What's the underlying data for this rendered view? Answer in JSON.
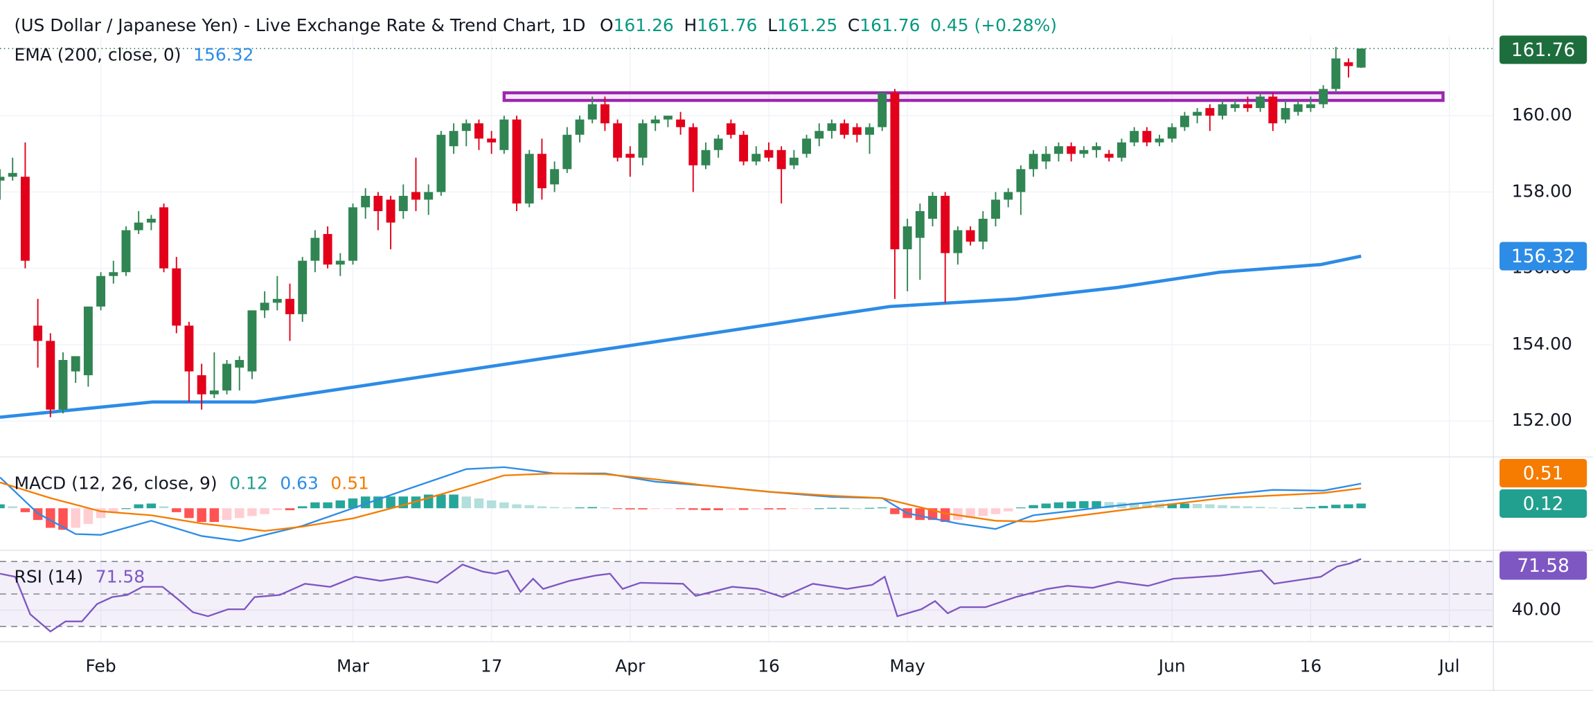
{
  "header": {
    "title": "(US Dollar / Japanese Yen) - Live Exchange Rate & Trend Chart, 1D",
    "readout": [
      {
        "key": "O",
        "value": "161.26"
      },
      {
        "key": "H",
        "value": "161.76"
      },
      {
        "key": "L",
        "value": "161.25"
      },
      {
        "key": "C",
        "value": "161.76"
      }
    ],
    "change": "0.45 (+0.28%)"
  },
  "xlim": [
    0,
    118.5
  ],
  "xticks": [
    {
      "value": 8,
      "label": "Feb"
    },
    {
      "value": 28,
      "label": "Mar"
    },
    {
      "value": 39,
      "label": "17"
    },
    {
      "value": 50,
      "label": "Apr"
    },
    {
      "value": 61,
      "label": "16"
    },
    {
      "value": 72,
      "label": "May"
    },
    {
      "value": 93,
      "label": "Jun"
    },
    {
      "value": 104,
      "label": "16"
    },
    {
      "value": 115,
      "label": "Jul"
    }
  ],
  "chart_data": [
    {
      "type": "candlestick",
      "up_color": "#308552",
      "down_color": "#e2001a",
      "grid": true,
      "ylim": [
        151.06,
        162.1
      ],
      "yticks": [
        {
          "value": 152,
          "label": "152.00"
        },
        {
          "value": 154,
          "label": "154.00"
        },
        {
          "value": 156,
          "label": "156.00"
        },
        {
          "value": 158,
          "label": "158.00"
        },
        {
          "value": 160,
          "label": "160.00"
        }
      ],
      "ohlc": [
        [
          158.3,
          158.6,
          157.8,
          158.4
        ],
        [
          158.4,
          158.9,
          158.3,
          158.5
        ],
        [
          158.4,
          159.3,
          156.0,
          156.2
        ],
        [
          154.5,
          155.2,
          153.4,
          154.1
        ],
        [
          154.1,
          154.3,
          152.1,
          152.3
        ],
        [
          152.3,
          153.8,
          152.2,
          153.6
        ],
        [
          153.3,
          153.7,
          153.0,
          153.7
        ],
        [
          153.2,
          155.0,
          152.9,
          155.0
        ],
        [
          155.0,
          155.9,
          154.9,
          155.8
        ],
        [
          155.8,
          156.2,
          155.6,
          155.9
        ],
        [
          155.9,
          157.1,
          155.8,
          157.0
        ],
        [
          157.0,
          157.5,
          156.9,
          157.2
        ],
        [
          157.2,
          157.4,
          157.0,
          157.3
        ],
        [
          157.6,
          157.7,
          155.9,
          156.0
        ],
        [
          156.0,
          156.3,
          154.3,
          154.5
        ],
        [
          154.5,
          154.6,
          152.5,
          153.3
        ],
        [
          153.2,
          153.5,
          152.3,
          152.7
        ],
        [
          152.7,
          153.8,
          152.6,
          152.8
        ],
        [
          152.8,
          153.6,
          152.7,
          153.5
        ],
        [
          153.4,
          153.7,
          152.8,
          153.6
        ],
        [
          153.3,
          154.9,
          153.1,
          154.9
        ],
        [
          154.9,
          155.4,
          154.7,
          155.1
        ],
        [
          155.1,
          155.8,
          154.9,
          155.2
        ],
        [
          155.2,
          155.6,
          154.1,
          154.8
        ],
        [
          154.8,
          156.3,
          154.6,
          156.2
        ],
        [
          156.2,
          157.0,
          155.9,
          156.8
        ],
        [
          156.9,
          157.1,
          156.0,
          156.1
        ],
        [
          156.1,
          156.4,
          155.8,
          156.2
        ],
        [
          156.2,
          157.7,
          156.1,
          157.6
        ],
        [
          157.6,
          158.1,
          157.3,
          157.9
        ],
        [
          157.9,
          158.0,
          157.0,
          157.5
        ],
        [
          157.8,
          157.9,
          156.5,
          157.2
        ],
        [
          157.5,
          158.2,
          157.3,
          157.9
        ],
        [
          158.0,
          158.9,
          157.5,
          157.8
        ],
        [
          157.8,
          158.2,
          157.4,
          158.0
        ],
        [
          158.0,
          159.6,
          157.9,
          159.5
        ],
        [
          159.2,
          159.8,
          159.0,
          159.6
        ],
        [
          159.6,
          159.9,
          159.2,
          159.8
        ],
        [
          159.8,
          159.9,
          159.1,
          159.4
        ],
        [
          159.4,
          159.6,
          159.0,
          159.3
        ],
        [
          159.1,
          160.0,
          159.0,
          159.9
        ],
        [
          159.9,
          160.0,
          157.5,
          157.7
        ],
        [
          157.7,
          159.1,
          157.6,
          159.0
        ],
        [
          159.0,
          159.4,
          157.8,
          158.1
        ],
        [
          158.2,
          158.8,
          158.0,
          158.6
        ],
        [
          158.6,
          159.7,
          158.5,
          159.5
        ],
        [
          159.5,
          160.0,
          159.3,
          159.9
        ],
        [
          159.9,
          160.5,
          159.8,
          160.3
        ],
        [
          160.3,
          160.5,
          159.6,
          159.8
        ],
        [
          159.8,
          159.9,
          158.8,
          158.9
        ],
        [
          159.0,
          159.2,
          158.4,
          158.9
        ],
        [
          158.9,
          159.9,
          158.7,
          159.8
        ],
        [
          159.8,
          160.0,
          159.6,
          159.9
        ],
        [
          159.9,
          160.0,
          159.7,
          160.0
        ],
        [
          159.9,
          160.1,
          159.5,
          159.7
        ],
        [
          159.7,
          159.8,
          158.0,
          158.7
        ],
        [
          158.7,
          159.3,
          158.6,
          159.1
        ],
        [
          159.1,
          159.5,
          158.9,
          159.4
        ],
        [
          159.8,
          159.9,
          159.4,
          159.5
        ],
        [
          159.5,
          159.6,
          158.7,
          158.8
        ],
        [
          158.8,
          159.2,
          158.7,
          159.0
        ],
        [
          159.1,
          159.3,
          158.8,
          158.9
        ],
        [
          159.1,
          159.2,
          157.7,
          158.6
        ],
        [
          158.7,
          159.1,
          158.6,
          158.9
        ],
        [
          159.0,
          159.5,
          158.9,
          159.4
        ],
        [
          159.4,
          159.8,
          159.2,
          159.6
        ],
        [
          159.6,
          159.9,
          159.4,
          159.8
        ],
        [
          159.8,
          159.9,
          159.4,
          159.5
        ],
        [
          159.7,
          159.8,
          159.3,
          159.5
        ],
        [
          159.5,
          159.8,
          159.0,
          159.7
        ],
        [
          159.7,
          160.6,
          159.6,
          160.6
        ],
        [
          160.6,
          160.7,
          155.2,
          156.5
        ],
        [
          156.5,
          157.3,
          155.4,
          157.1
        ],
        [
          156.8,
          157.7,
          155.7,
          157.5
        ],
        [
          157.3,
          158.0,
          157.1,
          157.9
        ],
        [
          157.9,
          158.0,
          155.1,
          156.4
        ],
        [
          156.4,
          157.1,
          156.1,
          157.0
        ],
        [
          157.0,
          157.1,
          156.6,
          156.7
        ],
        [
          156.7,
          157.5,
          156.5,
          157.3
        ],
        [
          157.3,
          158.0,
          157.1,
          157.8
        ],
        [
          157.8,
          158.1,
          157.6,
          158.0
        ],
        [
          158.0,
          158.7,
          157.4,
          158.6
        ],
        [
          158.6,
          159.1,
          158.4,
          159.0
        ],
        [
          158.8,
          159.2,
          158.6,
          159.0
        ],
        [
          159.0,
          159.3,
          158.8,
          159.2
        ],
        [
          159.2,
          159.3,
          158.8,
          159.0
        ],
        [
          159.0,
          159.2,
          158.9,
          159.1
        ],
        [
          159.1,
          159.3,
          158.9,
          159.2
        ],
        [
          159.0,
          159.1,
          158.8,
          158.9
        ],
        [
          158.9,
          159.4,
          158.8,
          159.3
        ],
        [
          159.3,
          159.7,
          159.2,
          159.6
        ],
        [
          159.6,
          159.7,
          159.2,
          159.3
        ],
        [
          159.3,
          159.5,
          159.2,
          159.4
        ],
        [
          159.4,
          159.8,
          159.3,
          159.7
        ],
        [
          159.7,
          160.1,
          159.6,
          160.0
        ],
        [
          160.0,
          160.2,
          159.8,
          160.1
        ],
        [
          160.2,
          160.3,
          159.6,
          160.0
        ],
        [
          160.0,
          160.4,
          159.9,
          160.3
        ],
        [
          160.2,
          160.4,
          160.1,
          160.3
        ],
        [
          160.3,
          160.5,
          160.1,
          160.2
        ],
        [
          160.2,
          160.6,
          160.1,
          160.5
        ],
        [
          160.5,
          160.6,
          159.6,
          159.8
        ],
        [
          159.9,
          160.4,
          159.8,
          160.2
        ],
        [
          160.1,
          160.4,
          160.0,
          160.3
        ],
        [
          160.2,
          160.5,
          160.1,
          160.3
        ],
        [
          160.3,
          160.8,
          160.2,
          160.7
        ],
        [
          160.7,
          161.8,
          160.6,
          161.5
        ],
        [
          161.4,
          161.5,
          161.0,
          161.3
        ],
        [
          161.26,
          161.76,
          161.25,
          161.76
        ]
      ],
      "ema": {
        "name": "EMA (200, close, 0)",
        "color": "#2d8ce6",
        "x": [
          0,
          12.1,
          20.2,
          32.3,
          40.3,
          48.4,
          56.5,
          64.5,
          70.6,
          80.6,
          88.7,
          96.8,
          104.8,
          108
        ],
        "values": [
          152.1,
          152.5,
          152.5,
          153.1,
          153.5,
          153.9,
          154.3,
          154.7,
          155.0,
          155.2,
          155.5,
          155.9,
          156.1,
          156.32
        ],
        "readout": "156.32"
      },
      "resistance_zone": {
        "x": [
          40,
          114.5
        ],
        "y": [
          160.4,
          160.6
        ],
        "color": "#9c27b0"
      },
      "price_tags": [
        {
          "value": 161.76,
          "label": "161.76",
          "color": "#1d6e3c"
        },
        {
          "value": 156.32,
          "label": "156.32",
          "color": "#2d8ce6"
        }
      ]
    },
    {
      "type": "macd",
      "name": "MACD (12, 26, close, 9)",
      "ylim": [
        -1.05,
        1.26
      ],
      "histogram": {
        "values": [
          0.1,
          0.05,
          -0.1,
          -0.3,
          -0.5,
          -0.55,
          -0.5,
          -0.4,
          -0.25,
          -0.1,
          0.0,
          0.1,
          0.12,
          0.05,
          -0.1,
          -0.25,
          -0.35,
          -0.35,
          -0.3,
          -0.25,
          -0.2,
          -0.15,
          -0.05,
          -0.05,
          0.05,
          0.15,
          0.15,
          0.2,
          0.25,
          0.3,
          0.3,
          0.3,
          0.3,
          0.3,
          0.35,
          0.35,
          0.35,
          0.3,
          0.25,
          0.2,
          0.15,
          0.1,
          0.08,
          0.05,
          0.03,
          0.02,
          0.02,
          0.03,
          0.02,
          -0.02,
          -0.03,
          -0.03,
          -0.02,
          -0.01,
          -0.02,
          -0.04,
          -0.05,
          -0.05,
          -0.04,
          -0.04,
          -0.03,
          -0.03,
          -0.03,
          -0.02,
          -0.01,
          0.0,
          0.01,
          0.01,
          0.0,
          0.01,
          0.02,
          -0.15,
          -0.25,
          -0.3,
          -0.3,
          -0.35,
          -0.3,
          -0.25,
          -0.2,
          -0.15,
          -0.08,
          0.02,
          0.08,
          0.12,
          0.15,
          0.17,
          0.18,
          0.18,
          0.16,
          0.15,
          0.14,
          0.13,
          0.12,
          0.12,
          0.12,
          0.11,
          0.1,
          0.08,
          0.06,
          0.05,
          0.04,
          0.02,
          0.01,
          0.01,
          0.03,
          0.06,
          0.09,
          0.1,
          0.12
        ],
        "colors": {
          "up_strong": "#26a69a",
          "up_weak": "#b2dfdb",
          "down_strong": "#ff5252",
          "down_weak": "#ffcdd2"
        }
      },
      "series": [
        {
          "color": "#2d8ce6",
          "x": [
            0,
            3,
            6,
            8,
            12,
            16,
            19,
            24,
            28,
            32,
            37,
            40,
            44,
            48,
            52,
            56,
            61,
            66,
            70,
            72,
            76,
            79,
            82,
            89,
            97,
            101,
            105,
            108
          ],
          "values": [
            0.79,
            -0.13,
            -0.66,
            -0.68,
            -0.32,
            -0.71,
            -0.84,
            -0.45,
            0,
            0.45,
            1.0,
            1.05,
            0.89,
            0.89,
            0.68,
            0.58,
            0.42,
            0.29,
            0.26,
            -0.13,
            -0.39,
            -0.53,
            -0.18,
            0.08,
            0.34,
            0.47,
            0.45,
            0.63
          ]
        },
        {
          "color": "#f57c00",
          "x": [
            0,
            4,
            8,
            12,
            16,
            21,
            24,
            28,
            32,
            36,
            40,
            44,
            48,
            52,
            56,
            61,
            66,
            70,
            75,
            79,
            82,
            89,
            97,
            105,
            108
          ],
          "values": [
            0.66,
            0.26,
            -0.08,
            -0.18,
            -0.39,
            -0.58,
            -0.47,
            -0.26,
            0.08,
            0.45,
            0.84,
            0.89,
            0.87,
            0.74,
            0.58,
            0.42,
            0.32,
            0.26,
            -0.13,
            -0.32,
            -0.34,
            -0.05,
            0.26,
            0.39,
            0.51
          ]
        }
      ],
      "readout": [
        {
          "value": "0.12",
          "color": "#22a08f"
        },
        {
          "value": "0.63",
          "color": "#2d8ce6"
        },
        {
          "value": "0.51",
          "color": "#f57c00"
        }
      ],
      "price_tags": [
        {
          "value": 0.51,
          "label": "0.51",
          "color": "#f57c00"
        },
        {
          "value": 0.12,
          "label": "0.12",
          "color": "#22a08f"
        }
      ]
    },
    {
      "type": "rsi",
      "name": "RSI (14)",
      "color": "#7e57c2",
      "ylim": [
        20.6,
        76.25
      ],
      "bands": [
        30,
        50,
        70
      ],
      "yticks": [
        {
          "value": 40,
          "label": "40.00"
        }
      ],
      "x": [
        0,
        1.2,
        2.4,
        4,
        5.2,
        6.5,
        7.7,
        8.9,
        10.1,
        11.3,
        12.9,
        14.1,
        15.3,
        16.5,
        18.1,
        19.4,
        20.2,
        22.2,
        24.2,
        26.2,
        28.2,
        30.2,
        32.3,
        34.7,
        36.7,
        38.3,
        39.3,
        40.3,
        41.3,
        42.3,
        43.1,
        45.2,
        47.2,
        48.4,
        49.4,
        50.8,
        54.2,
        55.2,
        58.1,
        60.1,
        62.1,
        64.5,
        67.2,
        69.2,
        70.2,
        71.2,
        73.1,
        74.2,
        75.2,
        76.2,
        78.2,
        80.6,
        83.1,
        84.7,
        86.7,
        88.7,
        91.1,
        93.1,
        96.8,
        100.1,
        101.1,
        104.8,
        106.1,
        107.1,
        108
      ],
      "values": [
        62.5,
        60.6,
        37.5,
        26.9,
        33.1,
        33.1,
        43.8,
        48.1,
        49.4,
        54.4,
        54.4,
        46.9,
        38.8,
        36.3,
        40.6,
        40.6,
        48.1,
        49.4,
        56.3,
        54.4,
        60.6,
        58.1,
        60.6,
        56.9,
        68.1,
        63.8,
        62.5,
        64.4,
        51.3,
        59.4,
        53.1,
        58.1,
        61.3,
        62.5,
        53.1,
        56.9,
        56.3,
        48.8,
        54.4,
        53.1,
        48.1,
        56.3,
        53.1,
        55.6,
        60.6,
        36.3,
        40.6,
        45.6,
        38.1,
        41.9,
        41.9,
        48.1,
        53.1,
        55,
        53.8,
        57.5,
        55,
        59.4,
        61.3,
        64.4,
        56.3,
        60.6,
        66.9,
        68.8,
        71.58
      ],
      "readout": "71.58",
      "price_tags": [
        {
          "value": 71.58,
          "label": "71.58",
          "color": "#7e57c2"
        }
      ]
    }
  ]
}
